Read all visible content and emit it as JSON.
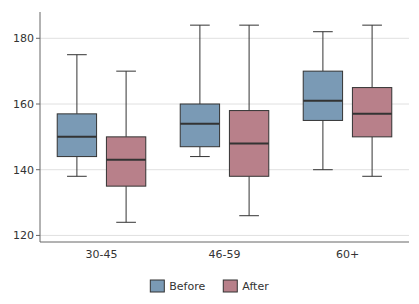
{
  "chart_data": {
    "type": "box",
    "categories": [
      "30-45",
      "46-59",
      "60+"
    ],
    "series": [
      {
        "name": "Before",
        "color": "#7a9ab5",
        "values": [
          {
            "low": 138,
            "q1": 144,
            "median": 150,
            "q3": 157,
            "high": 175
          },
          {
            "low": 144,
            "q1": 147,
            "median": 154,
            "q3": 160,
            "high": 184
          },
          {
            "low": 140,
            "q1": 155,
            "median": 161,
            "q3": 170,
            "high": 182
          }
        ]
      },
      {
        "name": "After",
        "color": "#b8808a",
        "values": [
          {
            "low": 124,
            "q1": 135,
            "median": 143,
            "q3": 150,
            "high": 170
          },
          {
            "low": 126,
            "q1": 138,
            "median": 148,
            "q3": 158,
            "high": 184
          },
          {
            "low": 138,
            "q1": 150,
            "median": 157,
            "q3": 165,
            "high": 184
          }
        ]
      }
    ],
    "ylim": [
      118,
      188
    ],
    "yticks": [
      120,
      140,
      160,
      180
    ],
    "grid": true,
    "legend": "bottom"
  }
}
